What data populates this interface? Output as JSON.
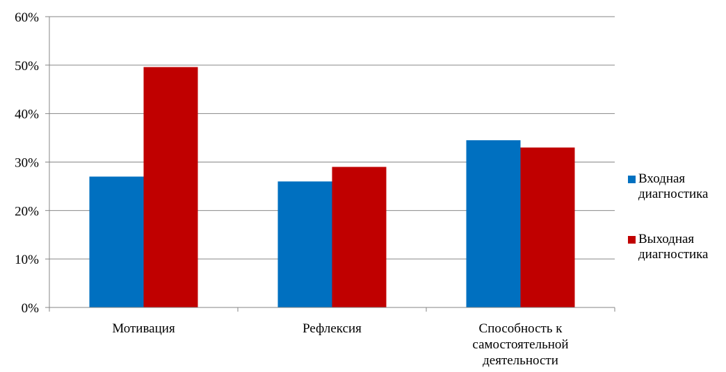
{
  "chart_data": {
    "type": "bar",
    "categories": [
      [
        "Мотивация"
      ],
      [
        "Рефлексия"
      ],
      [
        "Способность к",
        "самостоятельной",
        "деятельности"
      ]
    ],
    "series": [
      {
        "name": "Входная диагностика",
        "name_lines": [
          "Входная",
          "диагностика"
        ],
        "color": "#0070C0",
        "values": [
          0.27,
          0.26,
          0.345
        ]
      },
      {
        "name": "Выходная диагностика",
        "name_lines": [
          "Выходная",
          "диагностика"
        ],
        "color": "#C00000",
        "values": [
          0.496,
          0.29,
          0.33
        ]
      }
    ],
    "ylim": [
      0,
      0.6
    ],
    "yticks": [
      "0%",
      "10%",
      "20%",
      "30%",
      "40%",
      "50%",
      "60%"
    ],
    "grid": true,
    "legend_position": "right",
    "title": "",
    "xlabel": "",
    "ylabel": ""
  }
}
